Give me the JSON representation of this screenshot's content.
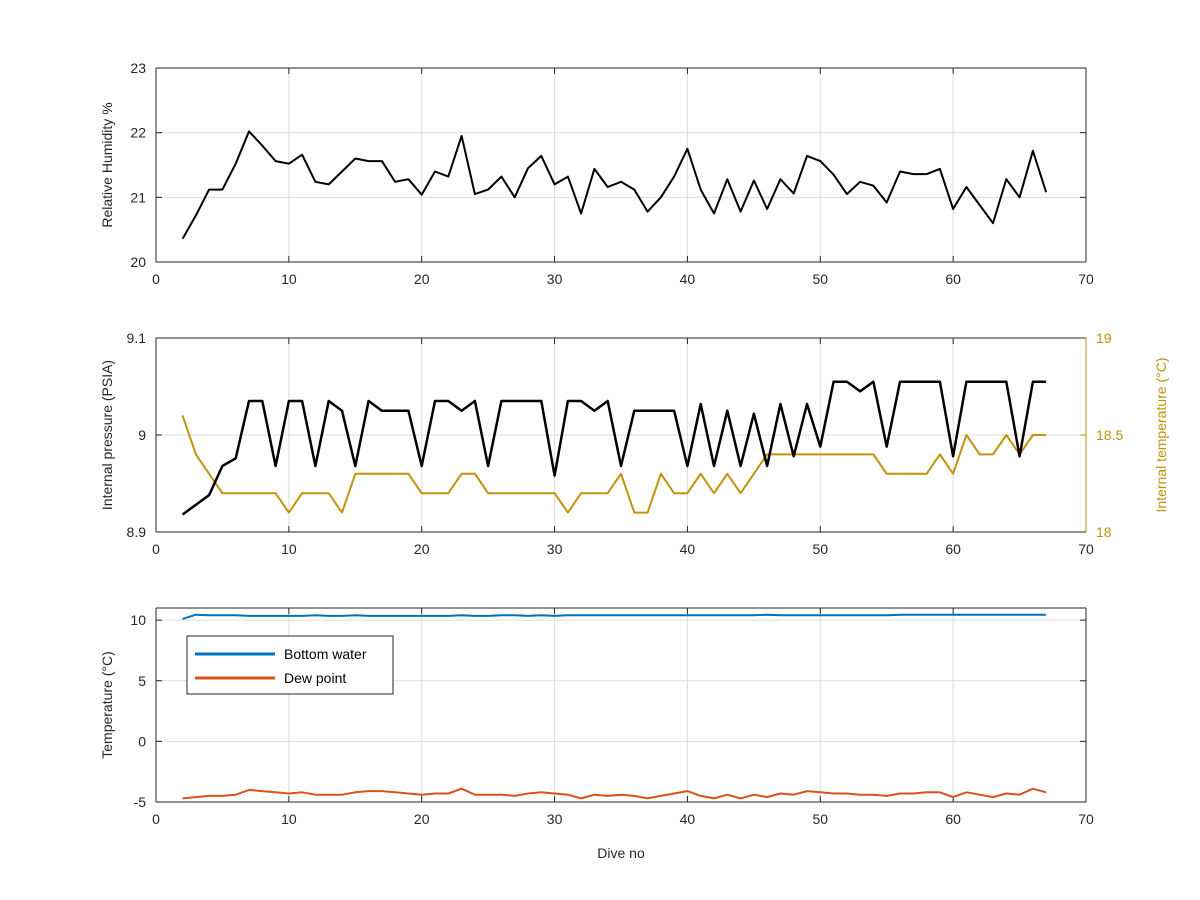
{
  "chart_data": [
    {
      "type": "line",
      "ylabel": "Relative Humidity %",
      "xlim": [
        0,
        70
      ],
      "ylim": [
        20,
        23
      ],
      "xticks": [
        "0",
        "10",
        "20",
        "30",
        "40",
        "50",
        "60",
        "70"
      ],
      "yticks": [
        "20",
        "21",
        "22",
        "23"
      ],
      "grid": true,
      "x": [
        2,
        3,
        4,
        5,
        6,
        7,
        8,
        9,
        10,
        11,
        12,
        13,
        14,
        15,
        16,
        17,
        18,
        19,
        20,
        21,
        22,
        23,
        24,
        25,
        26,
        27,
        28,
        29,
        30,
        31,
        32,
        33,
        34,
        35,
        36,
        37,
        38,
        39,
        40,
        41,
        42,
        43,
        44,
        45,
        46,
        47,
        48,
        49,
        50,
        51,
        52,
        53,
        54,
        55,
        56,
        57,
        58,
        59,
        60,
        61,
        62,
        63,
        64,
        65,
        66,
        67
      ],
      "series": [
        {
          "color": "#000000",
          "values": [
            20.36,
            20.72,
            21.12,
            21.12,
            21.52,
            22.02,
            21.8,
            21.56,
            21.52,
            21.66,
            21.24,
            21.2,
            21.4,
            21.6,
            21.56,
            21.56,
            21.24,
            21.28,
            21.04,
            21.4,
            21.32,
            21.95,
            21.05,
            21.12,
            21.32,
            21.0,
            21.45,
            21.64,
            21.2,
            21.32,
            20.75,
            21.44,
            21.16,
            21.24,
            21.12,
            20.78,
            21.0,
            21.32,
            21.75,
            21.12,
            20.75,
            21.28,
            20.78,
            21.26,
            20.82,
            21.28,
            21.06,
            21.64,
            21.56,
            21.35,
            21.05,
            21.24,
            21.18,
            20.92,
            21.4,
            21.36,
            21.36,
            21.44,
            20.82,
            21.16,
            20.88,
            20.6,
            21.28,
            21.0,
            21.72,
            21.08
          ]
        }
      ]
    },
    {
      "type": "line",
      "ylabel": "Internal pressure (PSIA)",
      "ylabel_right": "Internal temperature (°C)",
      "xlim": [
        0,
        70
      ],
      "ylim": [
        8.9,
        9.1
      ],
      "ylim_right": [
        18,
        19
      ],
      "xticks": [
        "0",
        "10",
        "20",
        "30",
        "40",
        "50",
        "60",
        "70"
      ],
      "yticks": [
        "8.9",
        "9",
        "9.1"
      ],
      "yticks_right": [
        "18",
        "18.5",
        "19"
      ],
      "grid": true,
      "pressure_x": [
        2,
        4,
        5,
        6,
        7,
        8,
        9,
        10,
        11,
        12,
        13,
        14,
        15,
        16,
        17,
        18,
        19,
        20,
        21,
        22,
        23,
        24,
        25,
        26,
        27,
        28,
        29,
        30,
        31,
        32,
        33,
        34,
        35,
        36,
        37,
        38,
        39,
        40,
        41,
        42,
        43,
        44,
        45,
        46,
        47,
        48,
        49,
        50,
        51,
        52,
        53,
        54,
        55,
        56,
        57,
        58,
        59,
        60,
        61,
        62,
        63,
        64,
        65,
        66,
        67
      ],
      "pressure_color": "#000000",
      "pressure_values": [
        8.918,
        8.938,
        8.968,
        8.976,
        9.035,
        9.035,
        8.968,
        9.035,
        9.035,
        8.968,
        9.035,
        9.025,
        8.968,
        9.035,
        9.025,
        9.025,
        9.025,
        8.968,
        9.035,
        9.035,
        9.025,
        9.035,
        8.968,
        9.035,
        9.035,
        9.035,
        9.035,
        8.958,
        9.035,
        9.035,
        9.025,
        9.035,
        8.968,
        9.025,
        9.025,
        9.025,
        9.025,
        8.968,
        9.032,
        8.968,
        9.025,
        8.968,
        9.022,
        8.968,
        9.032,
        8.978,
        9.032,
        8.988,
        9.055,
        9.055,
        9.045,
        9.055,
        8.988,
        9.055,
        9.055,
        9.055,
        9.055,
        8.978,
        9.055,
        9.055,
        9.055,
        9.055,
        8.978,
        9.055,
        9.055
      ],
      "temperature_x": [
        2,
        3,
        4,
        5,
        6,
        7,
        8,
        9,
        10,
        11,
        12,
        13,
        14,
        15,
        16,
        17,
        18,
        19,
        20,
        21,
        22,
        23,
        24,
        25,
        26,
        27,
        28,
        29,
        30,
        31,
        32,
        33,
        34,
        35,
        36,
        37,
        38,
        39,
        40,
        41,
        42,
        43,
        44,
        45,
        46,
        47,
        48,
        49,
        50,
        51,
        52,
        53,
        54,
        55,
        56,
        57,
        58,
        59,
        60,
        61,
        62,
        63,
        64,
        65,
        66,
        67
      ],
      "temperature_color": "#c0930a",
      "temperature_values": [
        18.6,
        18.4,
        18.3,
        18.2,
        18.2,
        18.2,
        18.2,
        18.2,
        18.1,
        18.2,
        18.2,
        18.2,
        18.1,
        18.3,
        18.3,
        18.3,
        18.3,
        18.3,
        18.2,
        18.2,
        18.2,
        18.3,
        18.3,
        18.2,
        18.2,
        18.2,
        18.2,
        18.2,
        18.2,
        18.1,
        18.2,
        18.2,
        18.2,
        18.3,
        18.1,
        18.1,
        18.3,
        18.2,
        18.2,
        18.3,
        18.2,
        18.3,
        18.2,
        18.3,
        18.4,
        18.4,
        18.4,
        18.4,
        18.4,
        18.4,
        18.4,
        18.4,
        18.4,
        18.3,
        18.3,
        18.3,
        18.3,
        18.4,
        18.3,
        18.5,
        18.4,
        18.4,
        18.5,
        18.4,
        18.5,
        18.5
      ]
    },
    {
      "type": "line",
      "ylabel": "Temperature (°C)",
      "xlabel": "Dive no",
      "xlim": [
        0,
        70
      ],
      "ylim": [
        -5,
        11
      ],
      "xticks": [
        "0",
        "10",
        "20",
        "30",
        "40",
        "50",
        "60",
        "70"
      ],
      "yticks": [
        "-5",
        "0",
        "5",
        "10"
      ],
      "grid": true,
      "legend_position": "top-left",
      "x": [
        2,
        3,
        4,
        5,
        6,
        7,
        8,
        9,
        10,
        11,
        12,
        13,
        14,
        15,
        16,
        17,
        18,
        19,
        20,
        21,
        22,
        23,
        24,
        25,
        26,
        27,
        28,
        29,
        30,
        31,
        32,
        33,
        34,
        35,
        36,
        37,
        38,
        39,
        40,
        41,
        42,
        43,
        44,
        45,
        46,
        47,
        48,
        49,
        50,
        51,
        52,
        53,
        54,
        55,
        56,
        57,
        58,
        59,
        60,
        61,
        62,
        63,
        64,
        65,
        66,
        67
      ],
      "series": [
        {
          "name": "Bottom water",
          "color": "#0072bd",
          "values": [
            10.1,
            10.45,
            10.4,
            10.4,
            10.4,
            10.35,
            10.35,
            10.35,
            10.35,
            10.35,
            10.4,
            10.35,
            10.35,
            10.4,
            10.35,
            10.35,
            10.35,
            10.35,
            10.35,
            10.35,
            10.35,
            10.4,
            10.35,
            10.35,
            10.4,
            10.4,
            10.35,
            10.4,
            10.35,
            10.4,
            10.4,
            10.4,
            10.4,
            10.4,
            10.4,
            10.4,
            10.4,
            10.4,
            10.4,
            10.4,
            10.4,
            10.4,
            10.4,
            10.4,
            10.45,
            10.4,
            10.4,
            10.4,
            10.4,
            10.4,
            10.4,
            10.4,
            10.4,
            10.4,
            10.45,
            10.45,
            10.45,
            10.45,
            10.45,
            10.45,
            10.45,
            10.45,
            10.45,
            10.45,
            10.45,
            10.45
          ]
        },
        {
          "name": "Dew point",
          "color": "#d95319",
          "values": [
            -4.7,
            -4.6,
            -4.5,
            -4.5,
            -4.4,
            -4.0,
            -4.1,
            -4.2,
            -4.3,
            -4.2,
            -4.4,
            -4.4,
            -4.4,
            -4.2,
            -4.1,
            -4.1,
            -4.2,
            -4.3,
            -4.4,
            -4.3,
            -4.3,
            -3.9,
            -4.4,
            -4.4,
            -4.4,
            -4.5,
            -4.3,
            -4.2,
            -4.3,
            -4.4,
            -4.7,
            -4.4,
            -4.5,
            -4.4,
            -4.5,
            -4.7,
            -4.5,
            -4.3,
            -4.1,
            -4.5,
            -4.7,
            -4.4,
            -4.7,
            -4.4,
            -4.6,
            -4.3,
            -4.4,
            -4.1,
            -4.2,
            -4.3,
            -4.3,
            -4.4,
            -4.4,
            -4.5,
            -4.3,
            -4.3,
            -4.2,
            -4.2,
            -4.6,
            -4.2,
            -4.4,
            -4.6,
            -4.3,
            -4.4,
            -3.9,
            -4.2
          ]
        }
      ]
    }
  ]
}
